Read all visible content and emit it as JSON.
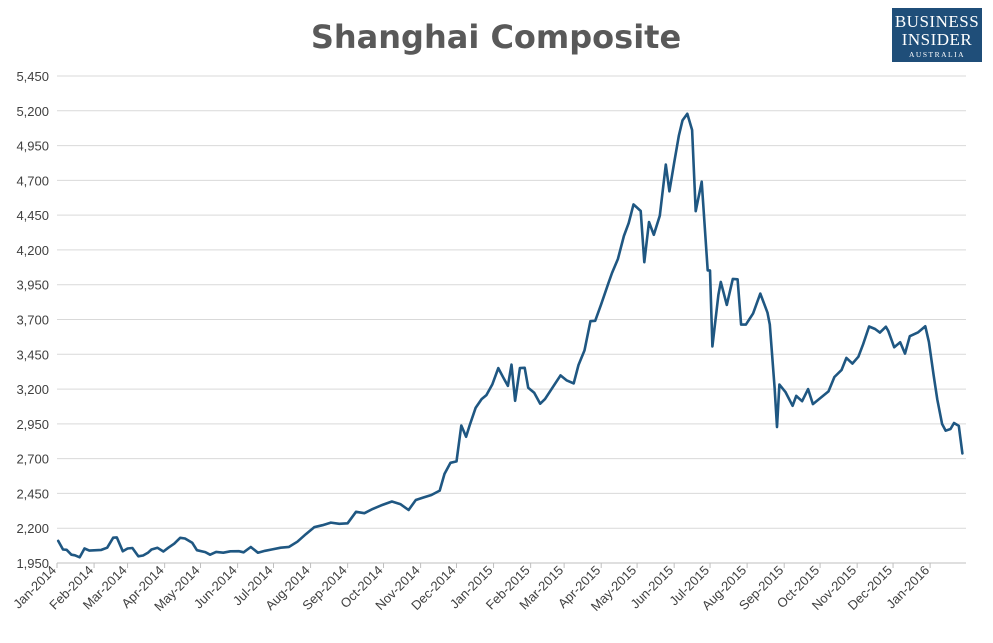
{
  "logo": {
    "line1": "BUSINESS",
    "line2": "INSIDER",
    "line3": "AUSTRALIA",
    "bg_color": "#1f4e79"
  },
  "chart_data": {
    "type": "line",
    "title": "Shanghai Composite",
    "xlabel": "",
    "ylabel": "",
    "grid": true,
    "ylim": [
      1950,
      5450
    ],
    "yticks": [
      1950,
      2200,
      2450,
      2700,
      2950,
      3200,
      3450,
      3700,
      3950,
      4200,
      4450,
      4700,
      4950,
      5200,
      5450
    ],
    "ytick_labels": [
      "1,950",
      "2,200",
      "2,450",
      "2,700",
      "2,950",
      "3,200",
      "3,450",
      "3,700",
      "3,950",
      "4,200",
      "4,450",
      "4,700",
      "4,950",
      "5,200",
      "5,450"
    ],
    "xlim": [
      "2014-01-01",
      "2016-01-31"
    ],
    "xticks": [
      "2014-01-01",
      "2014-02-01",
      "2014-03-01",
      "2014-04-01",
      "2014-05-01",
      "2014-06-01",
      "2014-07-01",
      "2014-08-01",
      "2014-09-01",
      "2014-10-01",
      "2014-11-01",
      "2014-12-01",
      "2015-01-01",
      "2015-02-01",
      "2015-03-01",
      "2015-04-01",
      "2015-05-01",
      "2015-06-01",
      "2015-07-01",
      "2015-08-01",
      "2015-09-01",
      "2015-10-01",
      "2015-11-01",
      "2015-12-01",
      "2016-01-01"
    ],
    "xtick_labels": [
      "Jan-2014",
      "Feb-2014",
      "Mar-2014",
      "Apr-2014",
      "May-2014",
      "Jun-2014",
      "Jul-2014",
      "Aug-2014",
      "Sep-2014",
      "Oct-2014",
      "Nov-2014",
      "Dec-2014",
      "Jan-2015",
      "Feb-2015",
      "Mar-2015",
      "Apr-2015",
      "May-2015",
      "Jun-2015",
      "Jul-2015",
      "Aug-2015",
      "Sep-2015",
      "Oct-2015",
      "Nov-2015",
      "Dec-2015",
      "Jan-2016"
    ],
    "series": [
      {
        "color": "#1f5782",
        "x": [
          "2014-01-02",
          "2014-01-06",
          "2014-01-09",
          "2014-01-13",
          "2014-01-16",
          "2014-01-20",
          "2014-01-24",
          "2014-01-28",
          "2014-02-07",
          "2014-02-12",
          "2014-02-17",
          "2014-02-20",
          "2014-02-25",
          "2014-03-01",
          "2014-03-05",
          "2014-03-10",
          "2014-03-14",
          "2014-03-18",
          "2014-03-21",
          "2014-03-26",
          "2014-03-31",
          "2014-04-04",
          "2014-04-09",
          "2014-04-14",
          "2014-04-18",
          "2014-04-24",
          "2014-04-28",
          "2014-05-05",
          "2014-05-09",
          "2014-05-14",
          "2014-05-20",
          "2014-05-26",
          "2014-06-02",
          "2014-06-06",
          "2014-06-12",
          "2014-06-18",
          "2014-06-24",
          "2014-06-30",
          "2014-07-07",
          "2014-07-14",
          "2014-07-21",
          "2014-07-28",
          "2014-08-04",
          "2014-08-11",
          "2014-08-18",
          "2014-08-25",
          "2014-09-01",
          "2014-09-08",
          "2014-09-15",
          "2014-09-22",
          "2014-09-29",
          "2014-10-08",
          "2014-10-15",
          "2014-10-22",
          "2014-10-28",
          "2014-11-03",
          "2014-11-10",
          "2014-11-17",
          "2014-11-21",
          "2014-11-26",
          "2014-12-01",
          "2014-12-05",
          "2014-12-09",
          "2014-12-12",
          "2014-12-17",
          "2014-12-22",
          "2014-12-26",
          "2014-12-31",
          "2015-01-05",
          "2015-01-09",
          "2015-01-13",
          "2015-01-16",
          "2015-01-19",
          "2015-01-23",
          "2015-01-27",
          "2015-01-30",
          "2015-02-04",
          "2015-02-09",
          "2015-02-13",
          "2015-02-26",
          "2015-03-03",
          "2015-03-09",
          "2015-03-13",
          "2015-03-18",
          "2015-03-23",
          "2015-03-27",
          "2015-04-01",
          "2015-04-07",
          "2015-04-10",
          "2015-04-15",
          "2015-04-20",
          "2015-04-24",
          "2015-04-28",
          "2015-05-04",
          "2015-05-07",
          "2015-05-11",
          "2015-05-15",
          "2015-05-20",
          "2015-05-25",
          "2015-05-28",
          "2015-06-01",
          "2015-06-05",
          "2015-06-08",
          "2015-06-12",
          "2015-06-16",
          "2015-06-19",
          "2015-06-24",
          "2015-06-29",
          "2015-07-01",
          "2015-07-03",
          "2015-07-08",
          "2015-07-10",
          "2015-07-15",
          "2015-07-20",
          "2015-07-24",
          "2015-07-27",
          "2015-07-31",
          "2015-08-06",
          "2015-08-12",
          "2015-08-18",
          "2015-08-20",
          "2015-08-24",
          "2015-08-26",
          "2015-08-28",
          "2015-09-02",
          "2015-09-08",
          "2015-09-11",
          "2015-09-16",
          "2015-09-21",
          "2015-09-25",
          "2015-10-08",
          "2015-10-13",
          "2015-10-19",
          "2015-10-23",
          "2015-10-28",
          "2015-11-02",
          "2015-11-06",
          "2015-11-11",
          "2015-11-16",
          "2015-11-20",
          "2015-11-25",
          "2015-11-27",
          "2015-12-02",
          "2015-12-07",
          "2015-12-11",
          "2015-12-15",
          "2015-12-22",
          "2015-12-28",
          "2015-12-31",
          "2016-01-04",
          "2016-01-07",
          "2016-01-11",
          "2016-01-14",
          "2016-01-18",
          "2016-01-21",
          "2016-01-25",
          "2016-01-28"
        ],
        "values": [
          2109,
          2047,
          2045,
          2010,
          2005,
          1991,
          2054,
          2039,
          2044,
          2060,
          2132,
          2134,
          2034,
          2054,
          2058,
          1998,
          2004,
          2023,
          2047,
          2059,
          2033,
          2059,
          2089,
          2131,
          2126,
          2096,
          2042,
          2028,
          2010,
          2030,
          2024,
          2034,
          2035,
          2027,
          2065,
          2024,
          2038,
          2048,
          2060,
          2066,
          2103,
          2157,
          2207,
          2222,
          2240,
          2232,
          2235,
          2318,
          2308,
          2339,
          2364,
          2392,
          2373,
          2331,
          2403,
          2420,
          2439,
          2470,
          2590,
          2670,
          2680,
          2938,
          2857,
          2938,
          3065,
          3128,
          3157,
          3235,
          3351,
          3285,
          3223,
          3376,
          3116,
          3351,
          3353,
          3210,
          3174,
          3095,
          3128,
          3298,
          3263,
          3241,
          3373,
          3478,
          3688,
          3691,
          3810,
          3961,
          4034,
          4135,
          4300,
          4393,
          4527,
          4480,
          4112,
          4401,
          4309,
          4446,
          4813,
          4621,
          4828,
          5023,
          5131,
          5178,
          5062,
          4478,
          4690,
          4053,
          4053,
          3507,
          3877,
          3970,
          3805,
          3992,
          3989,
          3663,
          3663,
          3744,
          3886,
          3749,
          3664,
          3210,
          2927,
          3232,
          3180,
          3080,
          3151,
          3113,
          3200,
          3092,
          3183,
          3287,
          3338,
          3424,
          3383,
          3433,
          3522,
          3650,
          3632,
          3606,
          3648,
          3617,
          3500,
          3536,
          3455,
          3580,
          3608,
          3651,
          3539,
          3296,
          3125,
          2949,
          2901,
          2913,
          2956,
          2935,
          2738
        ]
      }
    ]
  }
}
